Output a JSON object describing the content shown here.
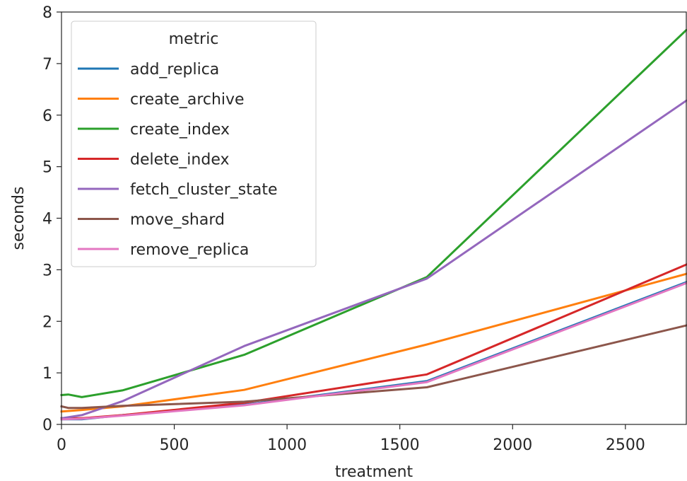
{
  "chart_data": {
    "type": "line",
    "title": "",
    "xlabel": "treatment",
    "ylabel": "seconds",
    "xlim": [
      0,
      2770
    ],
    "ylim": [
      0,
      8
    ],
    "xticks": [
      0,
      500,
      1000,
      1500,
      2000,
      2500
    ],
    "yticks": [
      0,
      1,
      2,
      3,
      4,
      5,
      6,
      7,
      8
    ],
    "grid": false,
    "legend": {
      "title": "metric",
      "placement": "top-left"
    },
    "series": [
      {
        "name": "add_replica",
        "color": "#1f77b4",
        "x": [
          0,
          90,
          270,
          810,
          1620,
          2770
        ],
        "y": [
          0.1,
          0.1,
          0.18,
          0.38,
          0.84,
          2.76
        ]
      },
      {
        "name": "create_archive",
        "color": "#ff7f0e",
        "x": [
          0,
          90,
          270,
          810,
          1620,
          2770
        ],
        "y": [
          0.25,
          0.28,
          0.35,
          0.67,
          1.55,
          2.92
        ]
      },
      {
        "name": "create_index",
        "color": "#2ca02c",
        "x": [
          0,
          30,
          90,
          270,
          810,
          1620,
          2770
        ],
        "y": [
          0.57,
          0.58,
          0.53,
          0.66,
          1.35,
          2.86,
          7.65
        ]
      },
      {
        "name": "delete_index",
        "color": "#d62728",
        "x": [
          0,
          90,
          270,
          810,
          1620,
          2770
        ],
        "y": [
          0.12,
          0.12,
          0.18,
          0.42,
          0.97,
          3.1
        ]
      },
      {
        "name": "fetch_cluster_state",
        "color": "#9467bd",
        "x": [
          0,
          90,
          270,
          810,
          1620,
          2770
        ],
        "y": [
          0.12,
          0.18,
          0.45,
          1.52,
          2.83,
          6.28
        ]
      },
      {
        "name": "move_shard",
        "color": "#8c564b",
        "x": [
          0,
          30,
          90,
          270,
          810,
          1620,
          2770
        ],
        "y": [
          0.35,
          0.32,
          0.32,
          0.36,
          0.44,
          0.72,
          1.92
        ]
      },
      {
        "name": "remove_replica",
        "color": "#e377c2",
        "x": [
          0,
          90,
          270,
          810,
          1620,
          2770
        ],
        "y": [
          0.1,
          0.11,
          0.17,
          0.37,
          0.82,
          2.74
        ]
      }
    ]
  }
}
